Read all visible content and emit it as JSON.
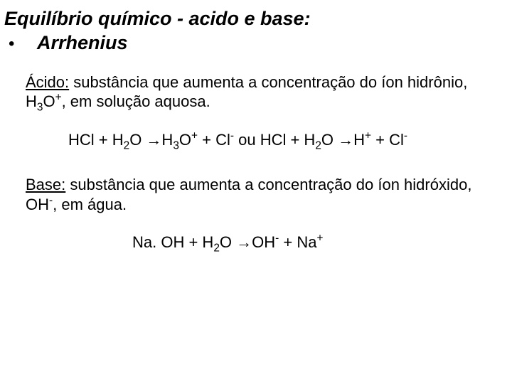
{
  "title_line1": "Equilíbrio químico - acido e base:",
  "bullet_symbol": "•",
  "title_line2": "Arrhenius",
  "acid_label": "Ácido:",
  "acid_def_1": " substância que aumenta a concentração do íon hidrônio, H",
  "acid_sub1": "3",
  "acid_o": "O",
  "acid_sup1": "+",
  "acid_def_2": ", em solução aquosa.",
  "eq1_a": "HCl + H",
  "eq1_b": "2",
  "eq1_c": "O →H",
  "eq1_d": "3",
  "eq1_e": "O",
  "eq1_f": "+",
  "eq1_g": " + Cl",
  "eq1_h": "-",
  "eq1_i": "   ou HCl + H",
  "eq1_j": "2",
  "eq1_k": "O →H",
  "eq1_l": "+",
  "eq1_m": " + Cl",
  "eq1_n": "-",
  "base_label": "Base:",
  "base_def_1": " substância que aumenta a concentração do íon hidróxido, OH",
  "base_sup1": "-",
  "base_def_2": ",  em água.",
  "eq2_a": "Na. OH + H",
  "eq2_b": "2",
  "eq2_c": "O →OH",
  "eq2_d": "-",
  "eq2_e": " + Na",
  "eq2_f": "+"
}
